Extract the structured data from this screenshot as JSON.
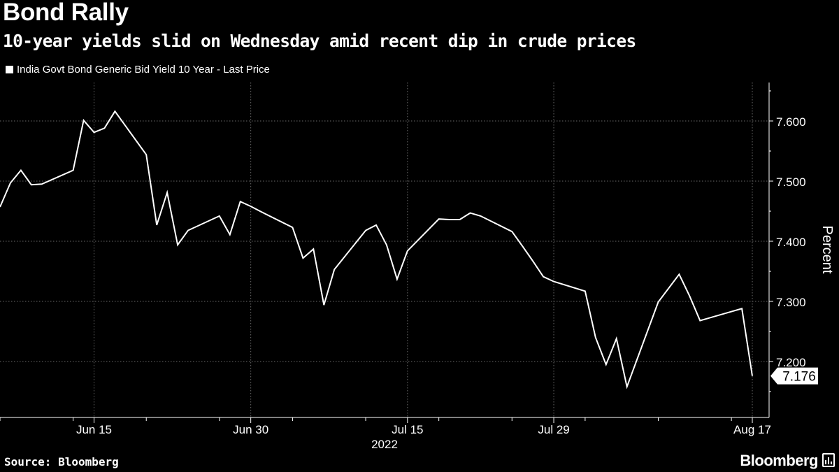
{
  "header": {
    "title": "Bond Rally",
    "subtitle": "10-year yields slid on Wednesday amid recent dip in crude prices"
  },
  "footer": {
    "source": "Source: Bloomberg",
    "brand": "Bloomberg"
  },
  "colors": {
    "background": "#000000",
    "line": "#ffffff",
    "grid": "#6a6a6a"
  },
  "chart_data": {
    "type": "line",
    "title": "Bond Rally",
    "subtitle": "10-year yields slid on Wednesday amid recent dip in crude prices",
    "ylabel": "Percent",
    "xlabel": "2022",
    "ylim": [
      7.12,
      7.66
    ],
    "yticks": [
      7.2,
      7.3,
      7.4,
      7.5,
      7.6
    ],
    "ytick_labels": [
      "7.200",
      "7.300",
      "7.400",
      "7.500",
      "7.600"
    ],
    "xticks": [
      "2022-06-15",
      "2022-06-30",
      "2022-07-15",
      "2022-07-29",
      "2022-08-17"
    ],
    "xtick_labels": [
      "Jun 15",
      "Jun 30",
      "Jul 15",
      "Jul 29",
      "Aug 17"
    ],
    "grid": true,
    "legend_position": "top-left",
    "last_value_label": "7.176",
    "series": [
      {
        "name": "India Govt Bond Generic Bid Yield 10 Year - Last Price",
        "x": [
          "2022-06-06",
          "2022-06-07",
          "2022-06-08",
          "2022-06-09",
          "2022-06-10",
          "2022-06-13",
          "2022-06-14",
          "2022-06-15",
          "2022-06-16",
          "2022-06-17",
          "2022-06-20",
          "2022-06-21",
          "2022-06-22",
          "2022-06-23",
          "2022-06-24",
          "2022-06-27",
          "2022-06-28",
          "2022-06-29",
          "2022-06-30",
          "2022-07-01",
          "2022-07-04",
          "2022-07-05",
          "2022-07-06",
          "2022-07-07",
          "2022-07-08",
          "2022-07-11",
          "2022-07-12",
          "2022-07-13",
          "2022-07-14",
          "2022-07-15",
          "2022-07-18",
          "2022-07-19",
          "2022-07-20",
          "2022-07-21",
          "2022-07-22",
          "2022-07-25",
          "2022-07-26",
          "2022-07-27",
          "2022-07-28",
          "2022-07-29",
          "2022-08-01",
          "2022-08-02",
          "2022-08-03",
          "2022-08-04",
          "2022-08-05",
          "2022-08-08",
          "2022-08-10",
          "2022-08-11",
          "2022-08-12",
          "2022-08-16",
          "2022-08-17"
        ],
        "y": [
          7.457,
          7.497,
          7.518,
          7.494,
          7.495,
          7.518,
          7.601,
          7.581,
          7.588,
          7.616,
          7.544,
          7.427,
          7.481,
          7.394,
          7.418,
          7.442,
          7.411,
          7.466,
          7.458,
          7.449,
          7.423,
          7.372,
          7.387,
          7.294,
          7.353,
          7.418,
          7.427,
          7.394,
          7.337,
          7.384,
          7.437,
          7.436,
          7.436,
          7.447,
          7.442,
          7.416,
          7.392,
          7.367,
          7.341,
          7.333,
          7.317,
          7.24,
          7.195,
          7.238,
          7.158,
          7.299,
          7.345,
          7.309,
          7.268,
          7.288,
          7.176
        ]
      }
    ]
  }
}
